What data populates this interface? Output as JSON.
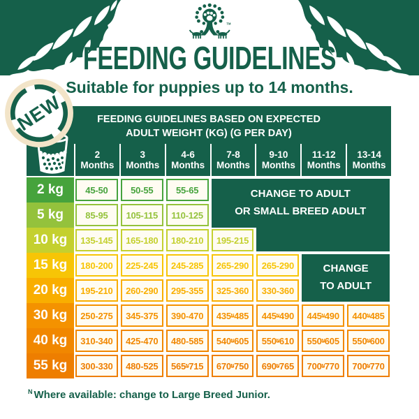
{
  "header": {
    "title": "FEEDING GUIDELINES",
    "subtitle": "Suitable for puppies up to 14 months.",
    "badge_label": "NEW"
  },
  "icons": {
    "logo": "tree-paw-dogs-logo",
    "badge": "new-stamp-badge",
    "cup": "measuring-cup-kibble-icon",
    "corners": "leaf-branch-decoration"
  },
  "chart_data": {
    "type": "table",
    "title_line1": "FEEDING GUIDELINES BASED ON EXPECTED",
    "title_line2": "ADULT WEIGHT (KG) (G PER DAY)",
    "columns": [
      {
        "num": "2",
        "label": "Months"
      },
      {
        "num": "3",
        "label": "Months"
      },
      {
        "num": "4-6",
        "label": "Months"
      },
      {
        "num": "7-8",
        "label": "Months"
      },
      {
        "num": "9-10",
        "label": "Months"
      },
      {
        "num": "11-12",
        "label": "Months"
      },
      {
        "num": "13-14",
        "label": "Months"
      }
    ],
    "rows": [
      {
        "weight": "2 kg",
        "color": "#46a33c",
        "values": [
          "45-50",
          "50-55",
          "55-65"
        ]
      },
      {
        "weight": "5 kg",
        "color": "#94c23c",
        "values": [
          "85-95",
          "105-115",
          "110-125"
        ]
      },
      {
        "weight": "10 kg",
        "color": "#c4d02f",
        "values": [
          "135-145",
          "165-180",
          "180-210",
          "195-215"
        ]
      },
      {
        "weight": "15 kg",
        "color": "#f7c506",
        "values": [
          "180-200",
          "225-245",
          "245-285",
          "265-290",
          "265-290"
        ]
      },
      {
        "weight": "20 kg",
        "color": "#f9ae00",
        "values": [
          "195-210",
          "260-290",
          "295-355",
          "325-360",
          "330-360"
        ]
      },
      {
        "weight": "30 kg",
        "color": "#f49200",
        "values": [
          "250-275",
          "345-375",
          "390-470",
          "435-N485",
          "445-N490",
          "445-N490",
          "440-N485"
        ]
      },
      {
        "weight": "40 kg",
        "color": "#f18700",
        "values": [
          "310-340",
          "425-470",
          "480-585",
          "540-N605",
          "550-N610",
          "550-N605",
          "550-N600"
        ]
      },
      {
        "weight": "55 kg",
        "color": "#ee7e00",
        "values": [
          "300-330",
          "480-525",
          "565-N715",
          "670-N750",
          "690-N765",
          "700-N770",
          "700-N770"
        ]
      }
    ],
    "merged_notes": {
      "small_breed_line1": "CHANGE TO ADULT",
      "small_breed_line2": "OR SMALL BREED ADULT",
      "adult_line1": "CHANGE",
      "adult_line2": "TO ADULT"
    }
  },
  "footnote": {
    "marker": "N",
    "text": "Where available: change to Large Breed Junior."
  },
  "colors": {
    "dark_green": "#15604a",
    "cream_ring": "#f2e4c8",
    "cell_background": "#fffcf2"
  }
}
